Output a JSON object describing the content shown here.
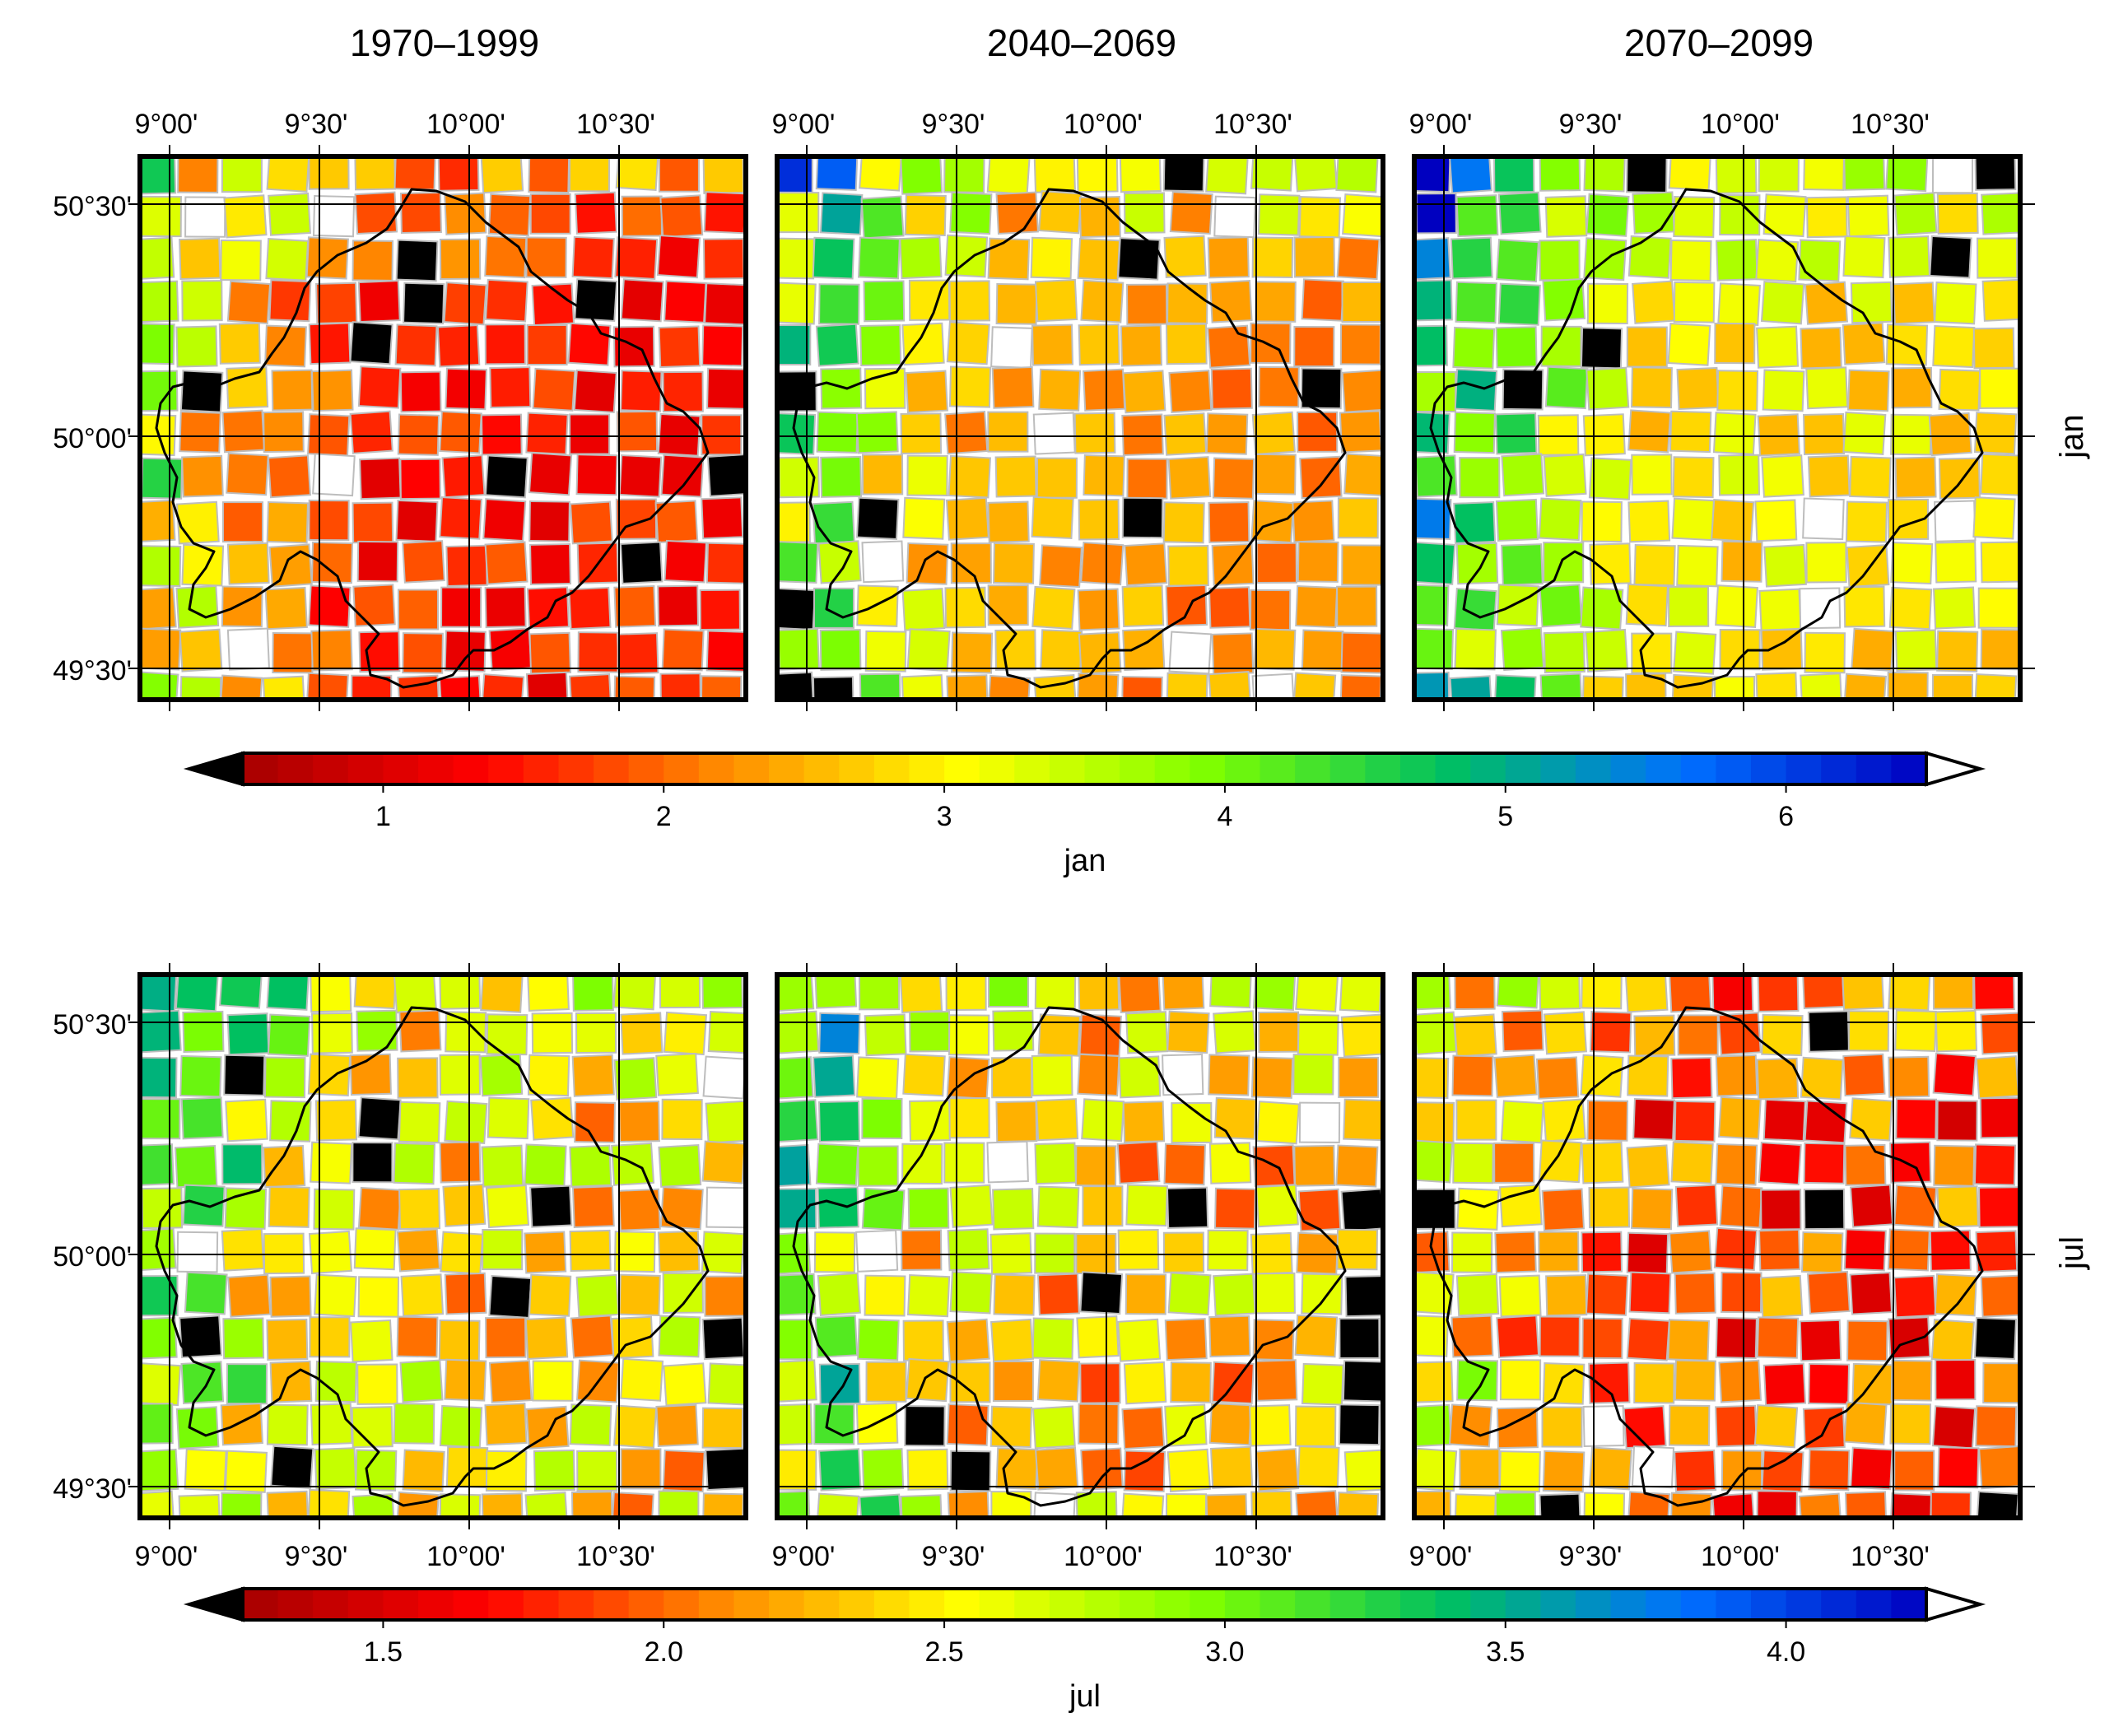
{
  "periods": [
    "1970–1999",
    "2040–2069",
    "2070–2099"
  ],
  "rows": [
    {
      "label": "jan",
      "lon_labels": [
        "9°00'",
        "9°30'",
        "10°00'",
        "10°30'"
      ],
      "lat_labels": [
        "50°30'",
        "50°00'",
        "49°30'"
      ],
      "colorbar": {
        "label": "jan",
        "ticks": [
          "1",
          "2",
          "3",
          "4",
          "5",
          "6"
        ],
        "tick_values": [
          1,
          2,
          3,
          4,
          5,
          6
        ],
        "min": 0.5,
        "max": 6.5,
        "extend": "both"
      },
      "mean_levels": [
        1.5,
        2.3,
        2.9
      ]
    },
    {
      "label": "jul",
      "lon_labels": [
        "9°00'",
        "9°30'",
        "10°00'",
        "10°30'"
      ],
      "lat_labels": [
        "50°30'",
        "50°00'",
        "49°30'"
      ],
      "colorbar": {
        "label": "jul",
        "ticks": [
          "1.5",
          "2.0",
          "2.5",
          "3.0",
          "3.5",
          "4.0"
        ],
        "tick_values": [
          1.5,
          2.0,
          2.5,
          3.0,
          3.5,
          4.0
        ],
        "min": 1.25,
        "max": 4.25,
        "extend": "both"
      },
      "mean_levels": [
        2.4,
        2.3,
        1.9
      ]
    }
  ],
  "colors": {
    "low_extend": "#000000",
    "high_extend": "#ffffff",
    "ramp": [
      "#a50000",
      "#ff0000",
      "#ff8c00",
      "#ffff00",
      "#7fff00",
      "#00c060",
      "#0070ff",
      "#0000c0"
    ]
  }
}
